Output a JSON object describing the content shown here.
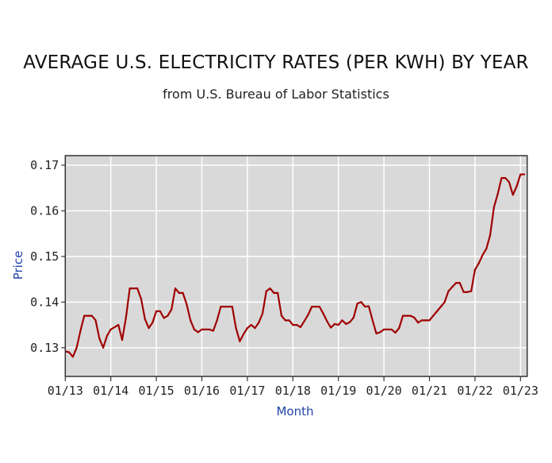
{
  "chart_data": {
    "type": "line",
    "title": "AVERAGE U.S. ELECTRICITY RATES (PER KWH) BY YEAR",
    "subtitle": "from U.S. Bureau of Labor Statistics",
    "xlabel": "Month",
    "ylabel": "Price",
    "x_tick_labels": [
      "01/13",
      "01/14",
      "01/15",
      "01/16",
      "01/17",
      "01/18",
      "01/19",
      "01/20",
      "01/21",
      "01/22",
      "01/23"
    ],
    "y_tick_labels": [
      "0.13",
      "0.14",
      "0.15",
      "0.16",
      "0.17"
    ],
    "y_ticks": [
      0.13,
      0.14,
      0.15,
      0.16,
      0.17
    ],
    "ylim": [
      0.1237,
      0.1721
    ],
    "xlim": [
      "2013-01",
      "2023-03"
    ],
    "grid": true,
    "colors": {
      "line": "#a00000",
      "plot_bg": "#d9d9d9",
      "grid": "#ffffff",
      "axis_label": "#2244aa"
    },
    "start": "2013-01",
    "series": [
      {
        "x": [
          "2013-01",
          "2013-02",
          "2013-03",
          "2013-04",
          "2013-05",
          "2013-06",
          "2013-07",
          "2013-08",
          "2013-09",
          "2013-10",
          "2013-11",
          "2013-12",
          "2014-01",
          "2014-02",
          "2014-03",
          "2014-04",
          "2014-05",
          "2014-06",
          "2014-07",
          "2014-08",
          "2014-09",
          "2014-10",
          "2014-11",
          "2014-12",
          "2015-01",
          "2015-02",
          "2015-03",
          "2015-04",
          "2015-05",
          "2015-06",
          "2015-07",
          "2015-08",
          "2015-09",
          "2015-10",
          "2015-11",
          "2015-12",
          "2016-01",
          "2016-02",
          "2016-03",
          "2016-04",
          "2016-05",
          "2016-06",
          "2016-07",
          "2016-08",
          "2016-09",
          "2016-10",
          "2016-11",
          "2016-12",
          "2017-01",
          "2017-02",
          "2017-03",
          "2017-04",
          "2017-05",
          "2017-06",
          "2017-07",
          "2017-08",
          "2017-09",
          "2017-10",
          "2017-11",
          "2017-12",
          "2018-01",
          "2018-02",
          "2018-03",
          "2018-04",
          "2018-05",
          "2018-06",
          "2018-07",
          "2018-08",
          "2018-09",
          "2018-10",
          "2018-11",
          "2018-12",
          "2019-01",
          "2019-02",
          "2019-03",
          "2019-04",
          "2019-05",
          "2019-06",
          "2019-07",
          "2019-08",
          "2019-09",
          "2019-10",
          "2019-11",
          "2019-12",
          "2020-01",
          "2020-02",
          "2020-03",
          "2020-04",
          "2020-05",
          "2020-06",
          "2020-07",
          "2020-08",
          "2020-09",
          "2020-10",
          "2020-11",
          "2020-12",
          "2021-01",
          "2021-02",
          "2021-03",
          "2021-04",
          "2021-05",
          "2021-06",
          "2021-07",
          "2021-08",
          "2021-09",
          "2021-10",
          "2021-11",
          "2021-12",
          "2022-01",
          "2022-02",
          "2022-03",
          "2022-04",
          "2022-05",
          "2022-06",
          "2022-07",
          "2022-08",
          "2022-09",
          "2022-10",
          "2022-11",
          "2022-12",
          "2023-01",
          "2023-02",
          "2023-03"
        ],
        "values": [
          0.1292,
          0.129,
          0.128,
          0.13,
          0.1337,
          0.137,
          0.137,
          0.137,
          0.136,
          0.132,
          0.13,
          0.1326,
          0.134,
          0.1345,
          0.135,
          0.1317,
          0.1366,
          0.143,
          0.143,
          0.143,
          0.1407,
          0.1363,
          0.1343,
          0.1355,
          0.138,
          0.138,
          0.1365,
          0.137,
          0.1384,
          0.143,
          0.142,
          0.142,
          0.1395,
          0.136,
          0.134,
          0.1334,
          0.134,
          0.134,
          0.134,
          0.1337,
          0.136,
          0.139,
          0.139,
          0.139,
          0.139,
          0.1343,
          0.1314,
          0.133,
          0.1343,
          0.135,
          0.1343,
          0.1355,
          0.1375,
          0.1424,
          0.143,
          0.142,
          0.142,
          0.137,
          0.136,
          0.136,
          0.135,
          0.135,
          0.1345,
          0.1358,
          0.1372,
          0.139,
          0.139,
          0.139,
          0.1375,
          0.1358,
          0.1344,
          0.1352,
          0.135,
          0.136,
          0.1352,
          0.1356,
          0.1366,
          0.1397,
          0.14,
          0.139,
          0.1391,
          0.136,
          0.1331,
          0.1334,
          0.134,
          0.134,
          0.134,
          0.1333,
          0.1343,
          0.137,
          0.137,
          0.137,
          0.1366,
          0.1355,
          0.136,
          0.136,
          0.136,
          0.137,
          0.138,
          0.139,
          0.14,
          0.1424,
          0.1433,
          0.1442,
          0.1442,
          0.1422,
          0.1422,
          0.1424,
          0.1471,
          0.1485,
          0.1503,
          0.1517,
          0.1547,
          0.1608,
          0.1637,
          0.1672,
          0.1672,
          0.1663,
          0.1635,
          0.1654,
          0.168,
          0.168,
          0.1664
        ]
      }
    ]
  }
}
